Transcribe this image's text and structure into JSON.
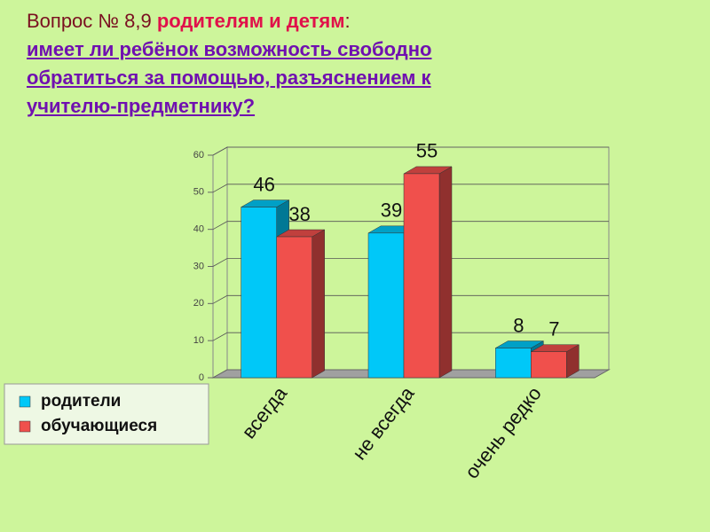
{
  "header": {
    "question_label": "Вопрос № 8,9",
    "audience": "родителям и детям",
    "separator": ":",
    "question_lines": [
      "имеет ли ребёнок возможность свободно",
      "обратиться за помощью, разъяснением к",
      "учителю-предметнику?"
    ]
  },
  "chart_data": {
    "type": "bar3d",
    "categories": [
      "всегда",
      "не всегда",
      "очень редко"
    ],
    "series": [
      {
        "name": "родители",
        "color": "#00c8f8",
        "values": [
          46,
          39,
          8
        ]
      },
      {
        "name": "обучающиеся",
        "color": "#f0504c",
        "values": [
          38,
          55,
          7
        ]
      }
    ],
    "ylim": [
      0,
      60
    ],
    "yticks": [
      0,
      10,
      20,
      30,
      40,
      50,
      60
    ],
    "grid": true,
    "legend": "bottom-left"
  }
}
